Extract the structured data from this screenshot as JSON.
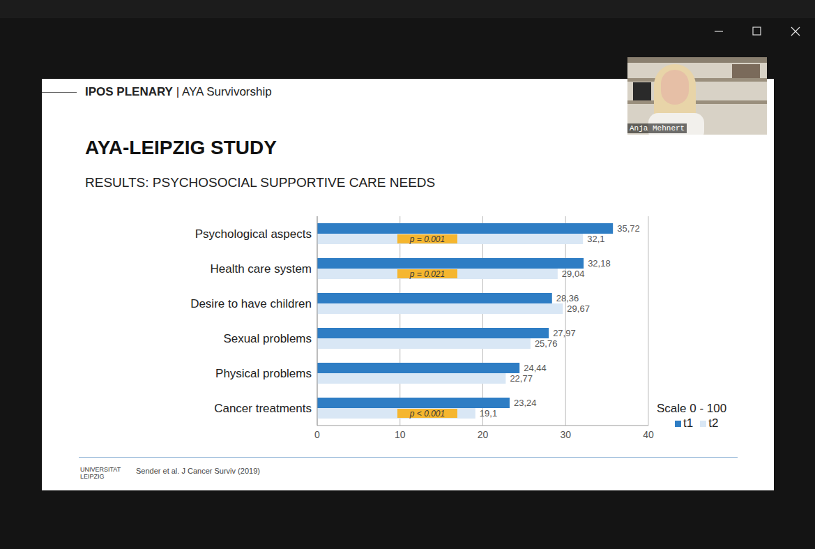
{
  "slide": {
    "header_bold": "IPOS PLENARY",
    "header_rest": "| AYA Survivorship",
    "title": "AYA-LEIPZIG STUDY",
    "subtitle": "RESULTS: PSYCHOSOCIAL SUPPORTIVE CARE NEEDS",
    "footer": {
      "logo": [
        "UNIVERSITAT",
        "LEIPZIG"
      ],
      "citation": "Sender et al. J Cancer Surviv (2019)"
    }
  },
  "video": {
    "name": "Anja Mehnert"
  },
  "chart_data": {
    "type": "bar",
    "orientation": "horizontal",
    "categories": [
      "Psychological aspects",
      "Health care system",
      "Desire to have children",
      "Sexual problems",
      "Physical problems",
      "Cancer treatments"
    ],
    "series": [
      {
        "name": "t1",
        "color": "#2e7dc4",
        "values": [
          35.72,
          32.18,
          28.36,
          27.97,
          24.44,
          23.24
        ],
        "value_labels": [
          "35,72",
          "32,18",
          "28,36",
          "27,97",
          "24,44",
          "23,24"
        ]
      },
      {
        "name": "t2",
        "color": "#d9e7f5",
        "values": [
          32.1,
          29.04,
          29.67,
          25.76,
          22.77,
          19.1
        ],
        "value_labels": [
          "32,1",
          "29,04",
          "29,67",
          "25,76",
          "22,77",
          "19,1"
        ]
      }
    ],
    "xlim": [
      0,
      40
    ],
    "xticks": [
      0,
      10,
      20,
      30,
      40
    ],
    "grid": true,
    "data_labels": true,
    "legend": "bottom right",
    "annotations": [
      {
        "text": "p = 0.001",
        "category": "Psychological aspects",
        "series": "t2"
      },
      {
        "text": "p = 0.021",
        "category": "Health care system",
        "series": "t2"
      },
      {
        "text": "p < 0.001",
        "category": "Cancer treatments",
        "series": "t2"
      },
      {
        "text": "Scale 0 - 100"
      }
    ]
  }
}
